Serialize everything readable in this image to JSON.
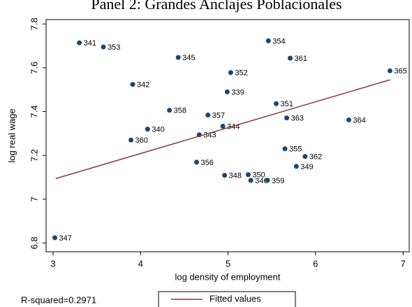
{
  "chart_data": {
    "type": "scatter",
    "title": "Panel 2: Grandes Anclajes Poblacionales",
    "x_label": "log density of employment",
    "y_label": "log real wage",
    "annotation": "R-squared=0.2971",
    "xlim": [
      2.92,
      7.07
    ],
    "ylim": [
      6.76,
      7.82
    ],
    "xticks": [
      3,
      4,
      5,
      6,
      7
    ],
    "yticks": [
      6.8,
      7,
      7.2,
      7.4,
      7.6,
      7.8
    ],
    "series": [
      {
        "color": "#1a476f",
        "point_labels": [
          "341",
          "353",
          "354",
          "345",
          "361",
          "365",
          "342",
          "352",
          "339",
          "351",
          "358",
          "357",
          "363",
          "364",
          "340",
          "344",
          "343",
          "360",
          "355",
          "362",
          "349",
          "356",
          "348",
          "350",
          "346",
          "359",
          "347"
        ],
        "x": [
          3.3,
          3.575,
          5.46,
          4.43,
          5.71,
          6.85,
          3.91,
          5.03,
          4.99,
          5.55,
          4.33,
          4.77,
          5.67,
          6.38,
          4.08,
          4.94,
          4.67,
          3.89,
          5.65,
          5.88,
          5.78,
          4.64,
          4.96,
          5.23,
          5.26,
          5.45,
          3.02
        ],
        "values": [
          7.714,
          7.695,
          7.723,
          7.647,
          7.644,
          7.586,
          7.524,
          7.578,
          7.49,
          7.436,
          7.406,
          7.384,
          7.371,
          7.362,
          7.32,
          7.333,
          7.294,
          7.27,
          7.23,
          7.195,
          7.15,
          7.169,
          7.109,
          7.112,
          7.086,
          7.086,
          6.824
        ]
      },
      {
        "name": "Fitted values",
        "type": "line",
        "color": "#90353b",
        "x": [
          3.03,
          6.85
        ],
        "values": [
          7.094,
          7.545
        ]
      }
    ]
  }
}
